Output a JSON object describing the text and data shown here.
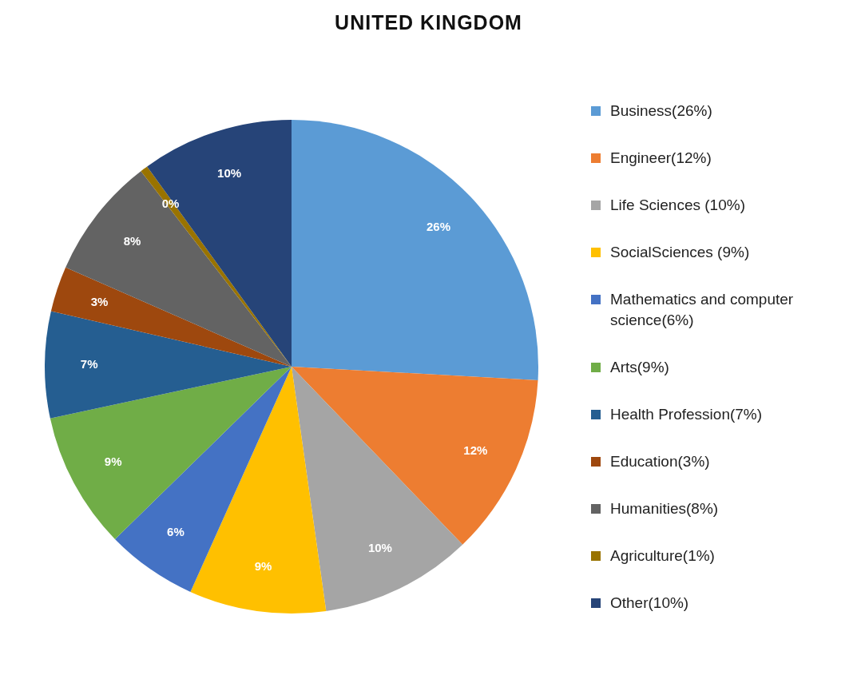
{
  "chart_data": {
    "type": "pie",
    "title": "UNITED KINGDOM",
    "categories": [
      "Business(26%)",
      "Engineer(12%)",
      "Life Sciences (10%)",
      "SocialSciences (9%)",
      "Mathematics and computer science(6%)",
      "Arts(9%)",
      "Health Profession(7%)",
      "Education(3%)",
      "Humanities(8%)",
      "Agriculture(1%)",
      "Other(10%)"
    ],
    "values": [
      26,
      12,
      10,
      9,
      6,
      9,
      7,
      3,
      8,
      0.5,
      10
    ],
    "value_labels": [
      "26%",
      "12%",
      "10%",
      "9%",
      "6%",
      "9%",
      "7%",
      "3%",
      "8%",
      "0%",
      "10%"
    ],
    "colors": [
      "#5b9bd5",
      "#ed7d31",
      "#a5a5a5",
      "#ffc000",
      "#4472c4",
      "#70ad47",
      "#255e91",
      "#9e480e",
      "#636363",
      "#997300",
      "#264478"
    ],
    "legend": "right"
  }
}
